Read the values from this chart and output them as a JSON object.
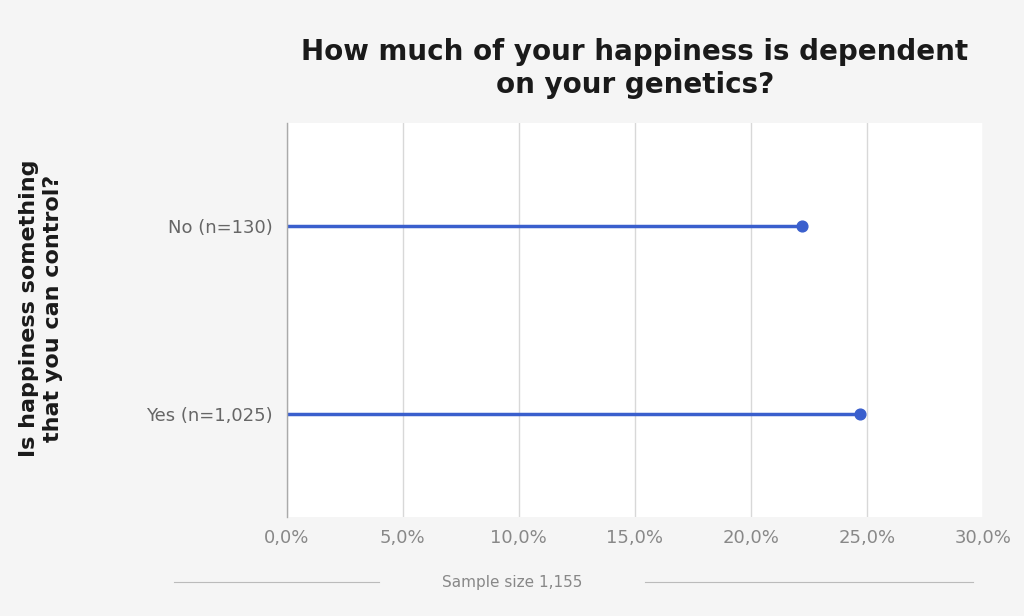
{
  "title": "How much of your happiness is dependent\non your genetics?",
  "ylabel": "Is happiness something\nthat you can control?",
  "xlabel": "Sample size 1,155",
  "categories": [
    "Yes (n=1,025)",
    "No (n=130)"
  ],
  "values": [
    0.247,
    0.222
  ],
  "xlim": [
    0.0,
    0.3
  ],
  "xticks": [
    0.0,
    0.05,
    0.1,
    0.15,
    0.2,
    0.25,
    0.3
  ],
  "xtick_labels": [
    "0,0%",
    "5,0%",
    "10,0%",
    "15,0%",
    "20,0%",
    "25,0%",
    "30,0%"
  ],
  "line_color": "#3a5fcd",
  "dot_color": "#3a5fcd",
  "background_color": "#f5f5f5",
  "plot_bg_color": "#ffffff",
  "title_fontsize": 20,
  "ylabel_fontsize": 16,
  "xlabel_fontsize": 11,
  "tick_fontsize": 13,
  "category_fontsize": 13,
  "line_width": 2.5,
  "dot_size": 60,
  "spine_color": "#aaaaaa",
  "grid_color": "#d8d8d8"
}
